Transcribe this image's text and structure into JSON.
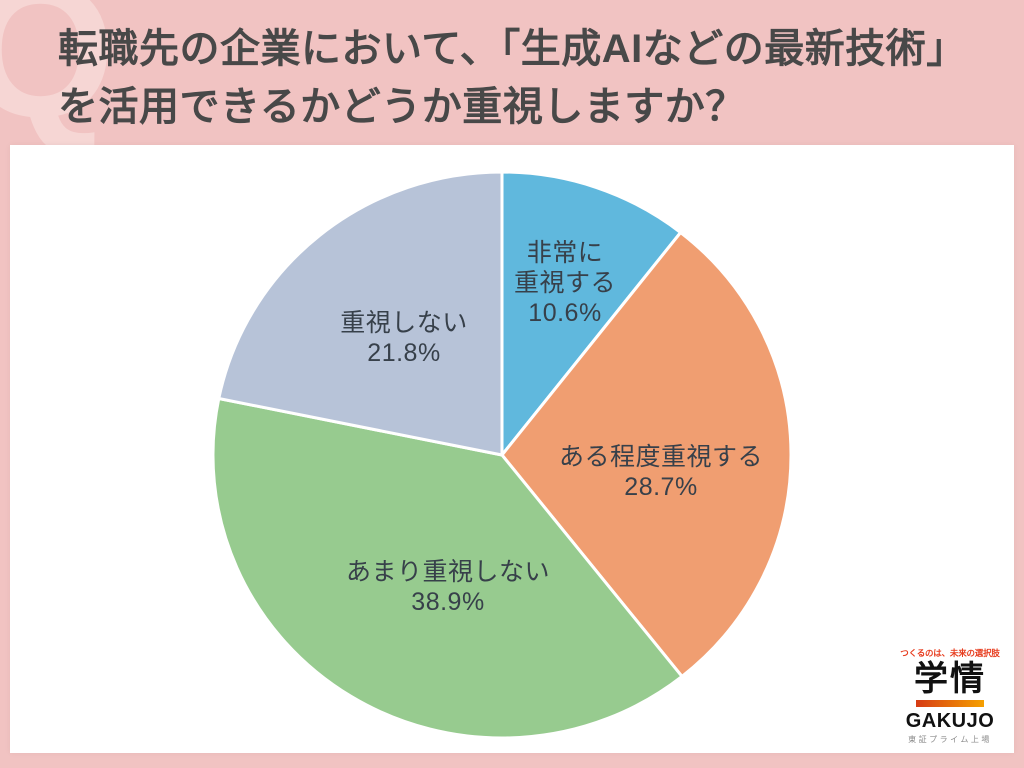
{
  "header": {
    "watermark_letter": "Q",
    "title_line1": "転職先の企業において、「生成AIなどの最新技術」",
    "title_line2": "を活用できるかどうか重視しますか？"
  },
  "chart_data": {
    "type": "pie",
    "title": "転職先の企業において、「生成AIなどの最新技術」を活用できるかどうか重視しますか？",
    "start_angle_deg": -90,
    "direction": "clockwise",
    "total": 100.0,
    "slices": [
      {
        "label": "非常に重視する",
        "line1": "非常に",
        "line2": "重視する",
        "value": 10.6,
        "display": "10.6%",
        "color": "#60b8dd"
      },
      {
        "label": "ある程度重視する",
        "line1": "ある程度重視する",
        "value": 28.7,
        "display": "28.7%",
        "color": "#f09e71"
      },
      {
        "label": "あまり重視しない",
        "line1": "あまり重視しない",
        "value": 38.9,
        "display": "38.9%",
        "color": "#97cb8f"
      },
      {
        "label": "重視しない",
        "line1": "重視しない",
        "value": 21.8,
        "display": "21.8%",
        "color": "#b7c3d8"
      }
    ],
    "legend": "none",
    "label_style": "inside-slice"
  },
  "logo": {
    "tagline": "つくるのは、未来の選択肢",
    "tagline_color": "#e73c1e",
    "name_kanji": "学情",
    "name_roman": "GAKUJO",
    "subtitle": "東証プライム上場",
    "bar_gradient": [
      "#d63b15",
      "#f5a000"
    ]
  }
}
